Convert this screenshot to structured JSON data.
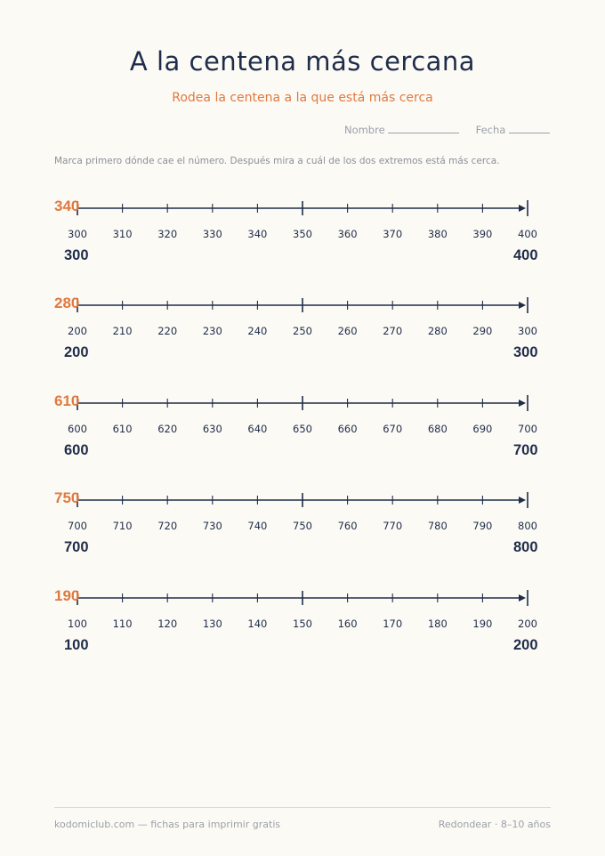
{
  "header": {
    "title": "A la centena más cercana",
    "subtitle": "Rodea la centena a la que está más cerca",
    "name_label": "Nombre",
    "date_label": "Fecha"
  },
  "instructions": "Marca primero dónde cae el número. Después mira a cuál de los dos extremos está más cerca.",
  "exercises": [
    {
      "target": "340",
      "ticks": [
        "300",
        "310",
        "320",
        "330",
        "340",
        "350",
        "360",
        "370",
        "380",
        "390",
        "400"
      ],
      "low": "300",
      "high": "400"
    },
    {
      "target": "280",
      "ticks": [
        "200",
        "210",
        "220",
        "230",
        "240",
        "250",
        "260",
        "270",
        "280",
        "290",
        "300"
      ],
      "low": "200",
      "high": "300"
    },
    {
      "target": "610",
      "ticks": [
        "600",
        "610",
        "620",
        "630",
        "640",
        "650",
        "660",
        "670",
        "680",
        "690",
        "700"
      ],
      "low": "600",
      "high": "700"
    },
    {
      "target": "750",
      "ticks": [
        "700",
        "710",
        "720",
        "730",
        "740",
        "750",
        "760",
        "770",
        "780",
        "790",
        "800"
      ],
      "low": "700",
      "high": "800"
    },
    {
      "target": "190",
      "ticks": [
        "100",
        "110",
        "120",
        "130",
        "140",
        "150",
        "160",
        "170",
        "180",
        "190",
        "200"
      ],
      "low": "100",
      "high": "200"
    }
  ],
  "footer": {
    "left": "kodomiclub.com — fichas para imprimir gratis",
    "right": "Redondear · 8–10 años"
  },
  "colors": {
    "accent": "#e0793f",
    "ink": "#1f2d4a",
    "muted": "#9aa0a8",
    "paper": "#fcfaf5"
  }
}
